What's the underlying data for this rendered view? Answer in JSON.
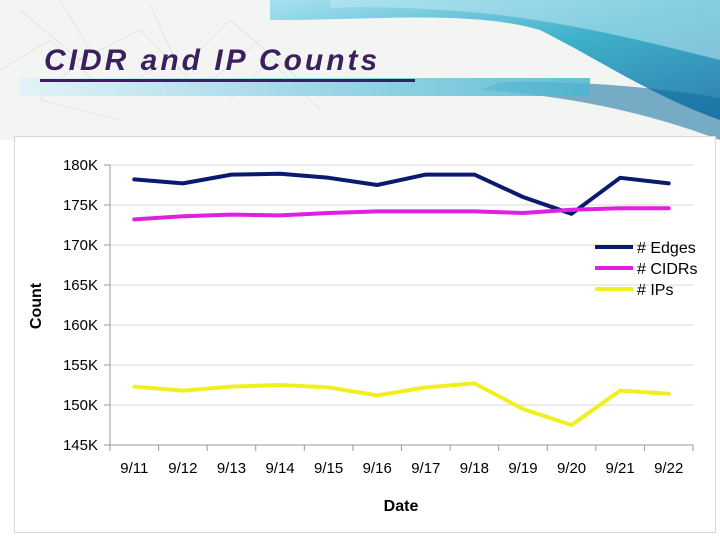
{
  "slide": {
    "title": "CIDR and IP Counts"
  },
  "colors": {
    "title": "#3b1f5e",
    "accent_teal": "#2aa9c6",
    "grid": "#d9d9d9"
  },
  "chart_data": {
    "type": "line",
    "title": "",
    "xlabel": "Date",
    "ylabel": "Count",
    "categories": [
      "9/11",
      "9/12",
      "9/13",
      "9/14",
      "9/15",
      "9/16",
      "9/17",
      "9/18",
      "9/19",
      "9/20",
      "9/21",
      "9/22"
    ],
    "ylim": [
      145000,
      180000
    ],
    "yticks": [
      145000,
      150000,
      155000,
      160000,
      165000,
      170000,
      175000,
      180000
    ],
    "ytick_labels": [
      "145K",
      "150K",
      "155K",
      "160K",
      "165K",
      "170K",
      "175K",
      "180K"
    ],
    "grid": true,
    "legend": "right",
    "series": [
      {
        "name": "# Edges",
        "color": "#0a1a6e",
        "values": [
          178200,
          177700,
          178800,
          178900,
          178400,
          177500,
          178800,
          178800,
          176000,
          173900,
          178400,
          177700
        ]
      },
      {
        "name": "# CIDRs",
        "color": "#e020e0",
        "values": [
          173200,
          173600,
          173800,
          173700,
          174000,
          174200,
          174200,
          174200,
          174000,
          174400,
          174600,
          174600
        ]
      },
      {
        "name": "# IPs",
        "color": "#f0f020",
        "values": [
          152300,
          151800,
          152300,
          152500,
          152200,
          151200,
          152200,
          152700,
          149500,
          147500,
          151800,
          151400
        ]
      }
    ]
  }
}
